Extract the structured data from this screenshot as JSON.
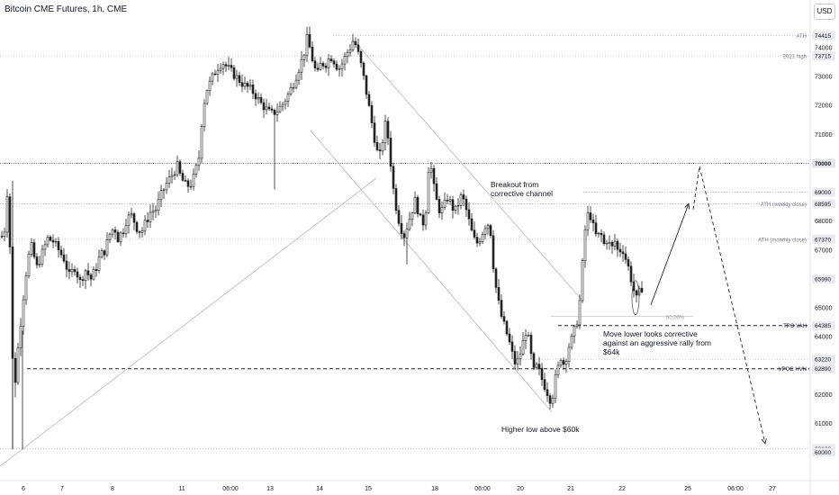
{
  "header": {
    "title": "Bitcoin CME Futures, 1h, CME",
    "currency": "USD"
  },
  "colors": {
    "background": "#ffffff",
    "candle": "#222222",
    "level_line": "#b2b5be",
    "key_line": "#222222",
    "channel": "#b8b8b8",
    "label_bg": "#e9ebef"
  },
  "chart_data": {
    "type": "candlestick",
    "title": "Bitcoin CME Futures, 1h, CME",
    "ylim": [
      59700,
      75400
    ],
    "price_ticks": [
      60000,
      61000,
      62000,
      63000,
      64000,
      65000,
      66000,
      67000,
      68000,
      69000,
      70000,
      71000,
      72000,
      73000,
      74000
    ],
    "time_labels": [
      "6",
      "7",
      "8",
      "11",
      "06:00",
      "13",
      "14",
      "15",
      "18",
      "06:00",
      "20",
      "21",
      "22",
      "25",
      "06:00",
      "27"
    ],
    "tagged_levels": [
      {
        "name": "ATH",
        "price": 74415,
        "value": "74415",
        "style": "dotted"
      },
      {
        "name": "2021 high",
        "price": 73715,
        "value": "73715",
        "style": "dotted"
      },
      {
        "name": "",
        "price": 70000,
        "value": "70000",
        "style": "dotted-dark",
        "bold": true
      },
      {
        "name": "",
        "price": 69000,
        "value": "69000",
        "style": "dotted"
      },
      {
        "name": "ATH (weekly close)",
        "price": 68595,
        "value": "68595",
        "style": "dotted"
      },
      {
        "name": "ATH (monthly close)",
        "price": 67370,
        "value": "67370",
        "style": "dotted"
      },
      {
        "name": "",
        "price": 65990,
        "value": "65990",
        "style": "none"
      },
      {
        "name": "TPO VAH",
        "price": 64385,
        "value": "64385",
        "style": "dashed"
      },
      {
        "name": "",
        "price": 63220,
        "value": "63220",
        "style": "dotted"
      },
      {
        "name": "VPOC HVN",
        "price": 62890,
        "value": "62890",
        "style": "dashed"
      },
      {
        "name": "",
        "price": 60120,
        "value": "60120",
        "style": "dotted"
      },
      {
        "name": "",
        "price": 60000,
        "value": "60000",
        "style": "none"
      }
    ],
    "fib_label": "50.00%",
    "annotations": [
      "Breakout from corrective channel",
      "Move lower looks corrective against an aggressive rally from $64k",
      "Higher low above $60k"
    ],
    "price_path": [
      [
        0,
        67400
      ],
      [
        4,
        67700
      ],
      [
        8,
        69400
      ],
      [
        11,
        66000
      ],
      [
        13,
        63200
      ],
      [
        15,
        62100
      ],
      [
        18,
        63300
      ],
      [
        22,
        64500
      ],
      [
        26,
        65700
      ],
      [
        30,
        66700
      ],
      [
        34,
        67100
      ],
      [
        40,
        66400
      ],
      [
        46,
        66900
      ],
      [
        52,
        67400
      ],
      [
        58,
        67300
      ],
      [
        64,
        67000
      ],
      [
        70,
        66700
      ],
      [
        76,
        66100
      ],
      [
        82,
        66400
      ],
      [
        88,
        65900
      ],
      [
        94,
        66300
      ],
      [
        100,
        66000
      ],
      [
        106,
        66400
      ],
      [
        110,
        66800
      ],
      [
        116,
        67000
      ],
      [
        120,
        67500
      ],
      [
        126,
        67800
      ],
      [
        130,
        67400
      ],
      [
        136,
        67700
      ],
      [
        140,
        68100
      ],
      [
        146,
        68200
      ],
      [
        150,
        67800
      ],
      [
        156,
        67600
      ],
      [
        160,
        67900
      ],
      [
        166,
        68300
      ],
      [
        172,
        68400
      ],
      [
        178,
        68900
      ],
      [
        184,
        69300
      ],
      [
        190,
        69600
      ],
      [
        196,
        69900
      ],
      [
        200,
        69500
      ],
      [
        206,
        69200
      ],
      [
        212,
        69300
      ],
      [
        216,
        69700
      ],
      [
        220,
        70200
      ],
      [
        224,
        71800
      ],
      [
        228,
        72500
      ],
      [
        234,
        72900
      ],
      [
        240,
        73300
      ],
      [
        246,
        73500
      ],
      [
        252,
        73300
      ],
      [
        258,
        73100
      ],
      [
        264,
        72900
      ],
      [
        270,
        72700
      ],
      [
        276,
        72600
      ],
      [
        282,
        72400
      ],
      [
        288,
        72100
      ],
      [
        294,
        71900
      ],
      [
        300,
        71700
      ],
      [
        306,
        71800
      ],
      [
        312,
        72000
      ],
      [
        318,
        72300
      ],
      [
        324,
        72700
      ],
      [
        330,
        73200
      ],
      [
        336,
        73700
      ],
      [
        340,
        74300
      ],
      [
        344,
        73900
      ],
      [
        348,
        73300
      ],
      [
        352,
        73100
      ],
      [
        356,
        73500
      ],
      [
        360,
        73400
      ],
      [
        364,
        73600
      ],
      [
        368,
        73700
      ],
      [
        372,
        73400
      ],
      [
        376,
        73300
      ],
      [
        380,
        73500
      ],
      [
        384,
        73800
      ],
      [
        388,
        74000
      ],
      [
        392,
        74300
      ],
      [
        396,
        73900
      ],
      [
        400,
        73400
      ],
      [
        404,
        72800
      ],
      [
        408,
        72100
      ],
      [
        412,
        71400
      ],
      [
        416,
        70700
      ],
      [
        420,
        70100
      ],
      [
        424,
        70800
      ],
      [
        428,
        71500
      ],
      [
        432,
        70300
      ],
      [
        436,
        69100
      ],
      [
        440,
        68300
      ],
      [
        444,
        67800
      ],
      [
        448,
        67500
      ],
      [
        452,
        67900
      ],
      [
        456,
        68300
      ],
      [
        460,
        68700
      ],
      [
        464,
        68300
      ],
      [
        468,
        67800
      ],
      [
        472,
        68400
      ],
      [
        476,
        70300
      ],
      [
        480,
        69300
      ],
      [
        484,
        68700
      ],
      [
        488,
        68300
      ],
      [
        492,
        68500
      ],
      [
        496,
        68800
      ],
      [
        500,
        68600
      ],
      [
        504,
        68300
      ],
      [
        508,
        68600
      ],
      [
        512,
        68900
      ],
      [
        516,
        68500
      ],
      [
        520,
        68000
      ],
      [
        524,
        67500
      ],
      [
        528,
        67200
      ],
      [
        532,
        67400
      ],
      [
        536,
        67700
      ],
      [
        540,
        68000
      ],
      [
        544,
        67600
      ],
      [
        548,
        66100
      ],
      [
        552,
        65300
      ],
      [
        556,
        64700
      ],
      [
        560,
        64300
      ],
      [
        564,
        63900
      ],
      [
        568,
        63400
      ],
      [
        572,
        63000
      ],
      [
        576,
        63300
      ],
      [
        580,
        63800
      ],
      [
        584,
        64300
      ],
      [
        588,
        63500
      ],
      [
        592,
        62800
      ],
      [
        596,
        63000
      ],
      [
        600,
        62600
      ],
      [
        604,
        62300
      ],
      [
        608,
        62000
      ],
      [
        612,
        61700
      ],
      [
        614,
        62300
      ],
      [
        618,
        62800
      ],
      [
        622,
        63300
      ],
      [
        626,
        63000
      ],
      [
        630,
        63600
      ],
      [
        634,
        63900
      ],
      [
        638,
        64300
      ],
      [
        642,
        64800
      ],
      [
        646,
        66500
      ],
      [
        650,
        68100
      ],
      [
        654,
        68300
      ],
      [
        658,
        67800
      ],
      [
        662,
        67400
      ],
      [
        666,
        67600
      ],
      [
        670,
        67200
      ],
      [
        674,
        67400
      ],
      [
        678,
        67000
      ],
      [
        682,
        67300
      ],
      [
        686,
        66900
      ],
      [
        690,
        67100
      ],
      [
        694,
        66700
      ],
      [
        698,
        66300
      ],
      [
        702,
        65700
      ],
      [
        706,
        65300
      ],
      [
        710,
        65600
      ],
      [
        714,
        65800
      ]
    ],
    "projection": [
      [
        723,
        65100
      ],
      [
        765,
        68600
      ],
      [
        777,
        69900
      ],
      [
        850,
        60300
      ]
    ]
  }
}
